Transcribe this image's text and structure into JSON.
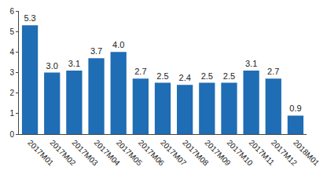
{
  "chart_data": {
    "type": "bar",
    "categories": [
      "2017M01",
      "2017M02",
      "2017M03",
      "2017M04",
      "2017M05",
      "2017M06",
      "2017M07",
      "2017M08",
      "2017M09",
      "2017M10",
      "2017M11",
      "2017M12",
      "2018M01"
    ],
    "values": [
      5.3,
      3.0,
      3.1,
      3.7,
      4.0,
      2.7,
      2.5,
      2.4,
      2.5,
      2.5,
      3.1,
      2.7,
      0.9
    ],
    "value_labels": [
      "5.3",
      "3.0",
      "3.1",
      "3.7",
      "4.0",
      "2.7",
      "2.5",
      "2.4",
      "2.5",
      "2.5",
      "3.1",
      "2.7",
      "0.9"
    ],
    "color": "#1f6db4",
    "ylim": [
      0,
      6
    ],
    "yticks": [
      0,
      1,
      2,
      3,
      4,
      5,
      6
    ],
    "grid": false,
    "data_labels": true
  }
}
